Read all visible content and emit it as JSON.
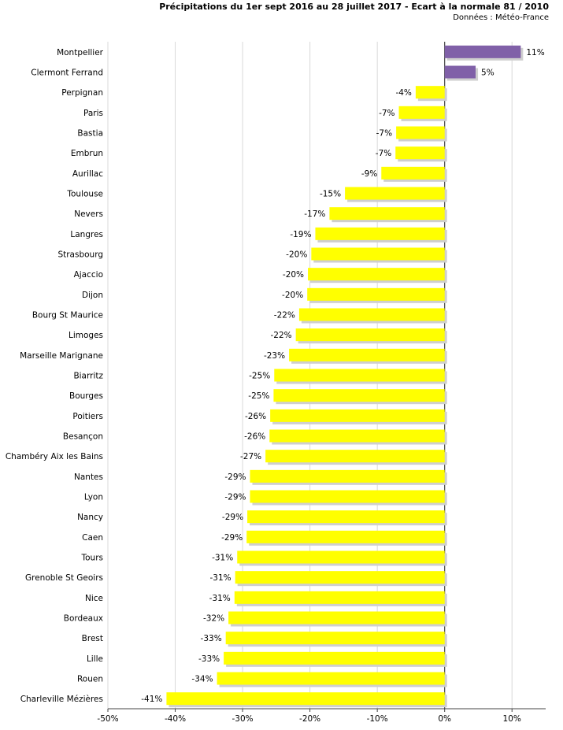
{
  "chart_data": {
    "type": "bar",
    "orientation": "horizontal",
    "title": "Précipitations du 1er sept 2016 au 28 juillet 2017 - Ecart à la normale 81 / 2010",
    "subtitle": "Données : Météo-France",
    "categories": [
      "Montpellier",
      "Clermont Ferrand",
      "Perpignan",
      "Paris",
      "Bastia",
      "Embrun",
      "Aurillac",
      "Toulouse",
      "Nevers",
      "Langres",
      "Strasbourg",
      "Ajaccio",
      "Dijon",
      "Bourg St Maurice",
      "Limoges",
      "Marseille Marignane",
      "Biarritz",
      "Bourges",
      "Poitiers",
      "Besançon",
      "Chambéry Aix les Bains",
      "Nantes",
      "Lyon",
      "Nancy",
      "Caen",
      "Tours",
      "Grenoble St Geoirs",
      "Nice",
      "Bordeaux",
      "Brest",
      "Lille",
      "Rouen",
      "Charleville Mézières"
    ],
    "values": [
      11.3,
      4.6,
      -4.3,
      -6.8,
      -7.2,
      -7.3,
      -9.4,
      -14.8,
      -17.1,
      -19.2,
      -19.8,
      -20.3,
      -20.4,
      -21.6,
      -22.1,
      -23.1,
      -25.3,
      -25.4,
      -25.9,
      -26.0,
      -26.6,
      -28.9,
      -28.9,
      -29.3,
      -29.4,
      -30.8,
      -31.1,
      -31.2,
      -32.1,
      -32.5,
      -32.8,
      -33.8,
      -41.3
    ],
    "labels": [
      "11%",
      "5%",
      "-4%",
      "-7%",
      "-7%",
      "-7%",
      "-9%",
      "-15%",
      "-17%",
      "-19%",
      "-20%",
      "-20%",
      "-20%",
      "-22%",
      "-22%",
      "-23%",
      "-25%",
      "-25%",
      "-26%",
      "-26%",
      "-27%",
      "-29%",
      "-29%",
      "-29%",
      "-29%",
      "-31%",
      "-31%",
      "-31%",
      "-32%",
      "-33%",
      "-33%",
      "-34%",
      "-41%"
    ],
    "xlim": [
      -50,
      15
    ],
    "xticks": [
      -50,
      -40,
      -30,
      -20,
      -10,
      0,
      10
    ],
    "xtick_labels": [
      "-50%",
      "-40%",
      "-30%",
      "-20%",
      "-10%",
      "0%",
      "10%"
    ],
    "grid": "vertical",
    "colors": {
      "positive": "#8060a8",
      "negative": "#ffff00",
      "shadow": "#cfcfcf",
      "grid": "#d9d9d9",
      "axis": "#444444"
    }
  }
}
